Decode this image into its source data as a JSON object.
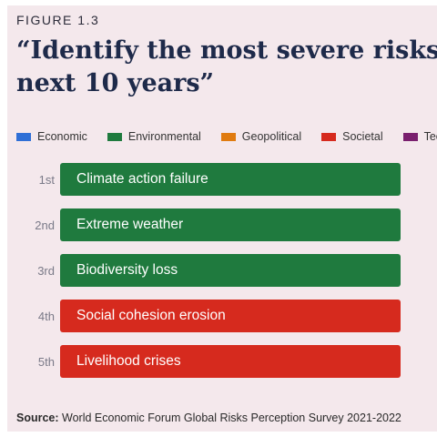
{
  "figure_label": "FIGURE 1.3",
  "title_line1": "“Identify the most severe risks on a global scale over the",
  "title_line2": "next 10 years”",
  "legend": [
    {
      "label": "Economic",
      "color": "#2f6fd6"
    },
    {
      "label": "Environmental",
      "color": "#1f7a3e"
    },
    {
      "label": "Geopolitical",
      "color": "#e07b10"
    },
    {
      "label": "Societal",
      "color": "#d62a1e"
    },
    {
      "label": "Technological",
      "color": "#7a1f6e"
    }
  ],
  "chart_data": {
    "type": "table",
    "rows": [
      {
        "rank": "1st",
        "risk": "Climate action failure",
        "category": "Environmental"
      },
      {
        "rank": "2nd",
        "risk": "Extreme weather",
        "category": "Environmental"
      },
      {
        "rank": "3rd",
        "risk": "Biodiversity loss",
        "category": "Environmental"
      },
      {
        "rank": "4th",
        "risk": "Social cohesion erosion",
        "category": "Societal"
      },
      {
        "rank": "5th",
        "risk": "Livelihood crises",
        "category": "Societal"
      }
    ]
  },
  "source_label": "Source:",
  "source_text": "World Economic Forum Global Risks Perception Survey 2021-2022"
}
